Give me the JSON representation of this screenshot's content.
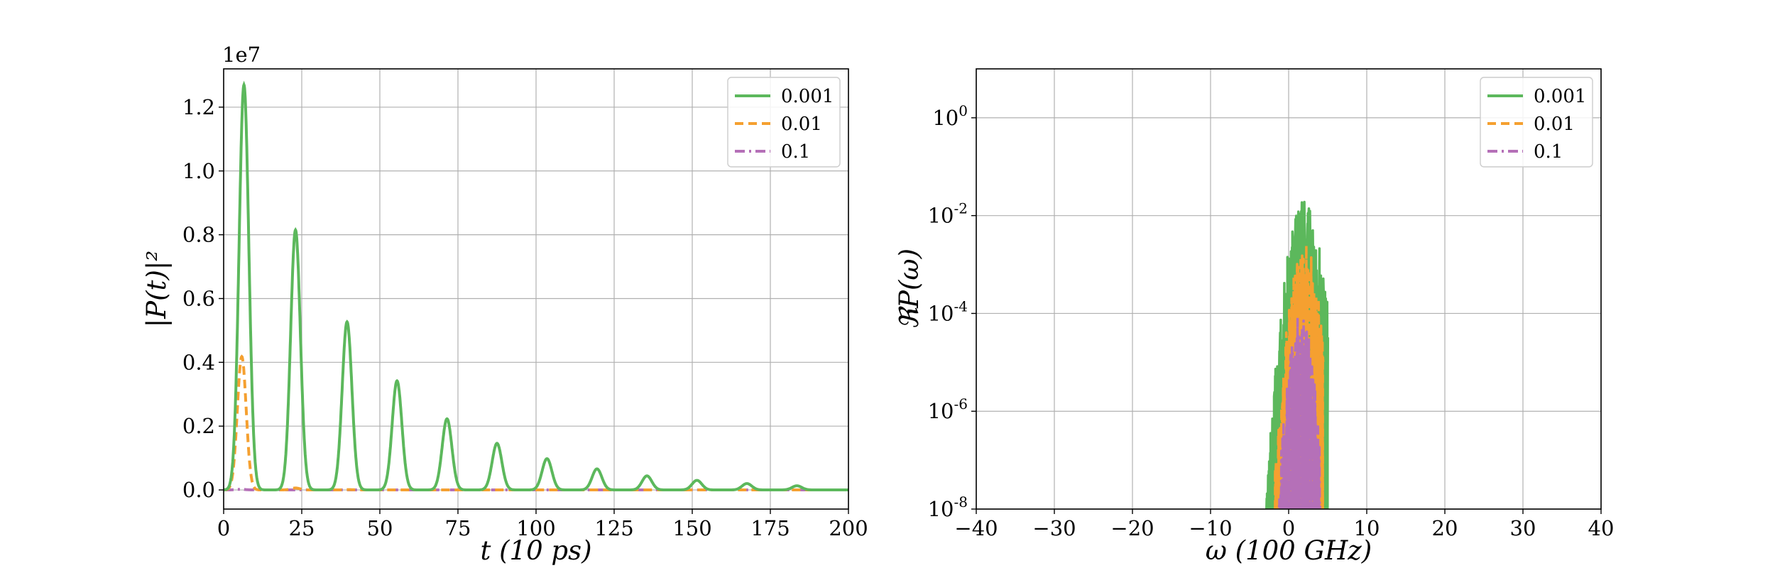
{
  "chart_data": [
    {
      "type": "line",
      "xlabel": "t (10 ps)",
      "ylabel": "|P(t)|²",
      "y_offset_text": "1e7",
      "xlim": [
        0,
        200
      ],
      "ylim": [
        -0.06,
        1.32
      ],
      "y_scale": 10000000,
      "xticks": [
        0,
        25,
        50,
        75,
        100,
        125,
        150,
        175,
        200
      ],
      "xtick_labels": [
        "0",
        "25",
        "50",
        "75",
        "100",
        "125",
        "150",
        "175",
        "200"
      ],
      "yticks": [
        0.0,
        0.2,
        0.4,
        0.6,
        0.8,
        1.0,
        1.2
      ],
      "ytick_labels": [
        "0.0",
        "0.2",
        "0.4",
        "0.6",
        "0.8",
        "1.0",
        "1.2"
      ],
      "grid": true,
      "legend_position": "top-right",
      "series": [
        {
          "name": "0.001",
          "color": "#5cb85c",
          "dash": "solid",
          "peaks_x": [
            6.5,
            23,
            39.5,
            55.5,
            71.5,
            87.5,
            103.5,
            119.5,
            135.5,
            151.5,
            167.5,
            183.5
          ],
          "peaks_y": [
            12700000,
            8150000,
            5270000,
            3420000,
            2230000,
            1460000,
            980000,
            660000,
            440000,
            300000,
            200000,
            130000
          ],
          "peak_width": 2.2
        },
        {
          "name": "0.01",
          "color": "#f5a030",
          "dash": "dashed",
          "peaks_x": [
            5.8,
            23,
            40
          ],
          "peaks_y": [
            4180000,
            60000,
            10000
          ],
          "peak_width": 2.0
        },
        {
          "name": "0.1",
          "color": "#b570b8",
          "dash": "dashdot",
          "peaks_x": [
            5.5
          ],
          "peaks_y": [
            20000
          ],
          "peak_width": 2.0
        }
      ]
    },
    {
      "type": "line",
      "xlabel": "ω (100 GHz)",
      "ylabel": "ℜP(ω)",
      "xlim": [
        -40,
        40
      ],
      "y_log": true,
      "ylim_exp": [
        -8,
        1.0
      ],
      "xticks": [
        -40,
        -30,
        -20,
        -10,
        0,
        10,
        20,
        30,
        40
      ],
      "xtick_labels": [
        "−40",
        "−30",
        "−20",
        "−10",
        "0",
        "10",
        "20",
        "30",
        "40"
      ],
      "yticks_exp": [
        -8,
        -6,
        -4,
        -2,
        0
      ],
      "ytick_labels": [
        "10",
        "10",
        "10",
        "10",
        "10"
      ],
      "ytick_exponents": [
        "-8",
        "-6",
        "-4",
        "-2",
        "0"
      ],
      "grid": true,
      "legend_position": "top-right",
      "series": [
        {
          "name": "0.001",
          "color": "#5cb85c",
          "dash": "solid",
          "x_range": [
            -4.2,
            5.0
          ],
          "center": 2.0,
          "peak_exp": -1.7,
          "sigma": 1.5
        },
        {
          "name": "0.01",
          "color": "#f5a030",
          "dash": "dashed",
          "x_range": [
            -3.0,
            4.4
          ],
          "center": 2.0,
          "peak_exp": -2.6,
          "sigma": 1.3
        },
        {
          "name": "0.1",
          "color": "#b570b8",
          "dash": "dashdot",
          "x_range": [
            -2.5,
            4.0
          ],
          "center": 1.5,
          "peak_exp": -4.0,
          "sigma": 1.1
        }
      ]
    }
  ]
}
